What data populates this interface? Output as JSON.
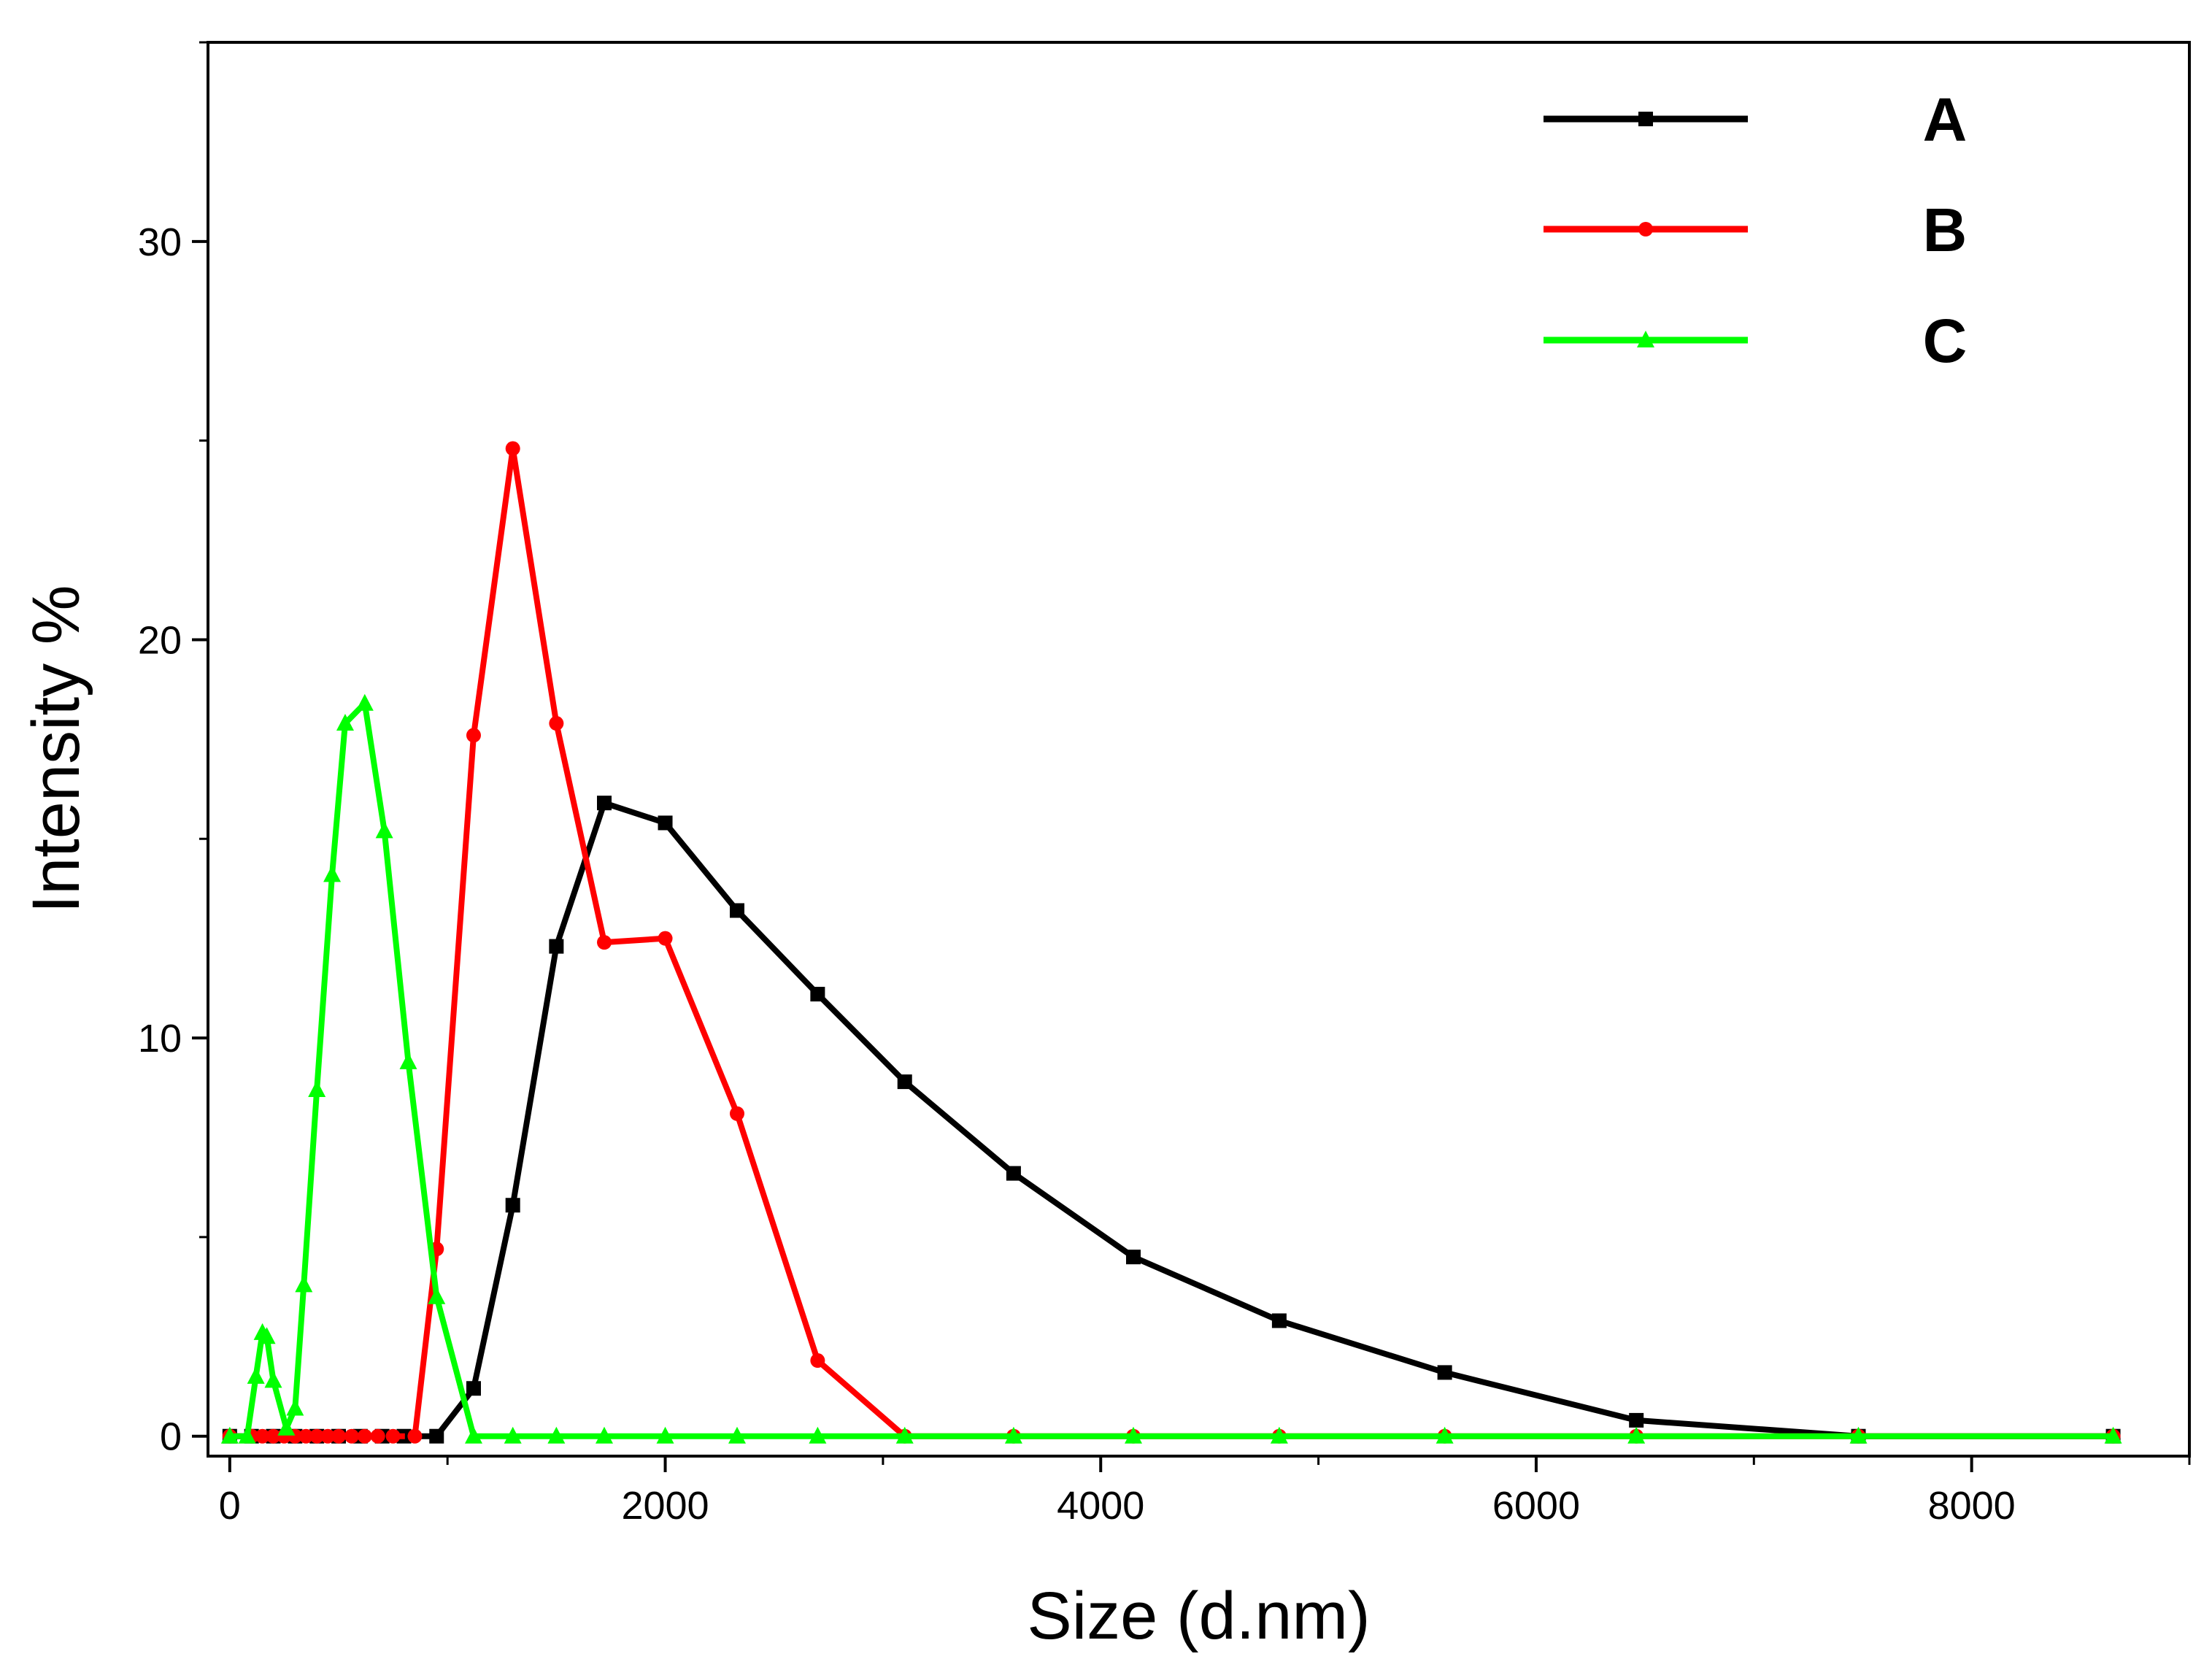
{
  "chart_data": {
    "type": "line",
    "title": "",
    "xlabel": "Size (d.nm)",
    "ylabel": "Intensity %",
    "xlim": [
      -100,
      9000
    ],
    "ylim": [
      -0.5,
      35
    ],
    "xticks": [
      0,
      2000,
      4000,
      6000,
      8000
    ],
    "yticks": [
      0,
      10,
      20,
      30
    ],
    "grid": false,
    "legend_position": "top-right",
    "series": [
      {
        "name": "A",
        "color": "#000000",
        "marker": "square",
        "x": [
          0,
          100,
          200,
          300,
          400,
          500,
          600,
          700,
          800,
          950,
          1120,
          1300,
          1500,
          1720,
          2000,
          2330,
          2700,
          3100,
          3600,
          4150,
          4820,
          5580,
          6460,
          7480,
          8650
        ],
        "y": [
          0,
          0,
          0,
          0,
          0,
          0,
          0,
          0,
          0,
          0,
          1.2,
          5.8,
          12.3,
          15.9,
          15.4,
          13.2,
          11.1,
          8.9,
          6.6,
          4.5,
          2.9,
          1.6,
          0.4,
          0,
          0
        ]
      },
      {
        "name": "B",
        "color": "#ff0000",
        "marker": "circle",
        "x": [
          0,
          100,
          150,
          200,
          250,
          300,
          350,
          400,
          450,
          500,
          560,
          620,
          680,
          750,
          850,
          950,
          1120,
          1300,
          1500,
          1720,
          2000,
          2330,
          2700,
          3100,
          3600,
          4150,
          4820,
          5580,
          6460,
          7480,
          8650
        ],
        "y": [
          0,
          0,
          0,
          0,
          0,
          0,
          0,
          0,
          0,
          0,
          0,
          0,
          0,
          0,
          0,
          4.7,
          17.6,
          24.8,
          17.9,
          12.4,
          12.5,
          8.1,
          1.9,
          0,
          0,
          0,
          0,
          0,
          0,
          0,
          0
        ],
        "dashed_segment_end_x": 850
      },
      {
        "name": "C",
        "color": "#00ff00",
        "marker": "triangle",
        "x": [
          0,
          80,
          120,
          150,
          170,
          200,
          260,
          300,
          340,
          400,
          470,
          530,
          620,
          710,
          820,
          950,
          1120,
          1300,
          1500,
          1720,
          2000,
          2330,
          2700,
          3100,
          3600,
          4150,
          4820,
          5580,
          6460,
          7480,
          8650
        ],
        "y": [
          0,
          0,
          1.5,
          2.6,
          2.5,
          1.4,
          0.2,
          0.7,
          3.8,
          8.7,
          14.1,
          17.9,
          18.4,
          15.2,
          9.4,
          3.5,
          0,
          0,
          0,
          0,
          0,
          0,
          0,
          0,
          0,
          0,
          0,
          0,
          0,
          0,
          0
        ]
      }
    ]
  }
}
